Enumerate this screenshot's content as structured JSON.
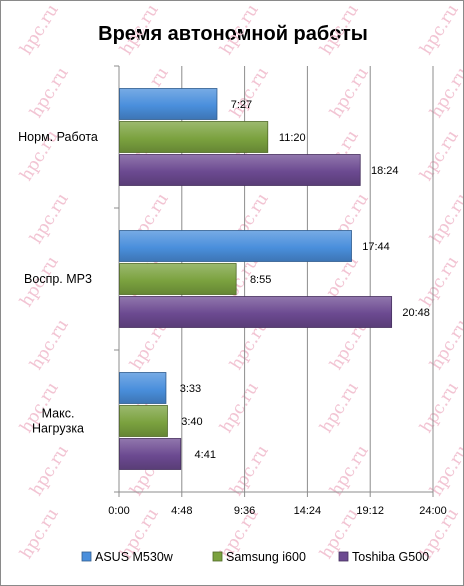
{
  "chart_data": {
    "type": "bar",
    "orientation": "horizontal",
    "title": "Время автономной работы",
    "categories": [
      "Норм. Работа",
      "Воспр. MP3",
      "Макс. Нагрузка"
    ],
    "category_lines": [
      [
        "Норм. Работа"
      ],
      [
        "Воспр. MP3"
      ],
      [
        "Макс.",
        "Нагрузка"
      ]
    ],
    "series": [
      {
        "name": "ASUS M530w",
        "color": "#4a8fdc",
        "values": [
          7.45,
          17.7333,
          3.55
        ],
        "labels": [
          "7:27",
          "17:44",
          "3:33"
        ]
      },
      {
        "name": "Samsung i600",
        "color": "#7ba23f",
        "values": [
          11.3333,
          8.9167,
          3.6667
        ],
        "labels": [
          "11:20",
          "8:55",
          "3:40"
        ]
      },
      {
        "name": "Toshiba G500",
        "color": "#6c4a91",
        "values": [
          18.4,
          20.8,
          4.6833
        ],
        "labels": [
          "18:24",
          "20:48",
          "4:41"
        ]
      }
    ],
    "xlim": [
      0,
      24
    ],
    "xticks": [
      0,
      4.8,
      9.6,
      14.4,
      19.2,
      24
    ],
    "xtick_labels": [
      "0:00",
      "4:48",
      "9:36",
      "14:24",
      "19:12",
      "24:00"
    ],
    "xlabel": "",
    "ylabel": "",
    "grid": "vertical",
    "legend": "bottom",
    "watermark": "hpc.ru"
  }
}
